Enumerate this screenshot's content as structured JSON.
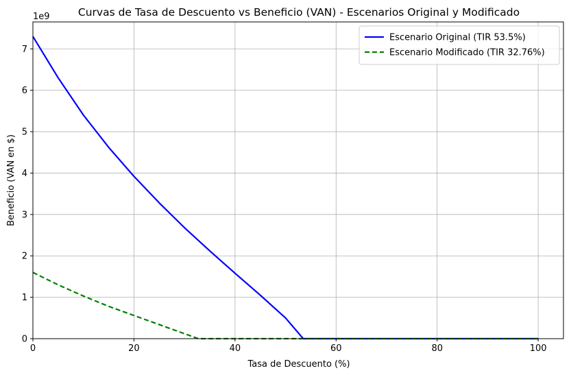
{
  "chart_data": {
    "type": "line",
    "title": "Curvas de Tasa de Descuento vs Beneficio (VAN) - Escenarios Original y Modificado",
    "xlabel": "Tasa de Descuento (%)",
    "ylabel": "Beneficio (VAN en $)",
    "y_offset_label": "1e9",
    "xlim": [
      0,
      105
    ],
    "ylim": [
      0,
      7.65
    ],
    "x_ticks": [
      0,
      20,
      40,
      60,
      80,
      100
    ],
    "y_ticks": [
      0,
      1,
      2,
      3,
      4,
      5,
      6,
      7
    ],
    "grid": true,
    "legend_position": "top-right",
    "series": [
      {
        "name": "Escenario Original (TIR 53.5%)",
        "color": "#0000ff",
        "style": "solid",
        "x": [
          0,
          5,
          10,
          15,
          20,
          25,
          30,
          35,
          40,
          45,
          50,
          53.5,
          60,
          70,
          80,
          90,
          100
        ],
        "y": [
          7.3,
          6.3,
          5.4,
          4.62,
          3.92,
          3.28,
          2.68,
          2.12,
          1.58,
          1.05,
          0.5,
          0,
          0,
          0,
          0,
          0,
          0
        ]
      },
      {
        "name": "Escenario Modificado (TIR 32.76%)",
        "color": "#008000",
        "style": "dashed",
        "x": [
          0,
          5,
          10,
          15,
          20,
          25,
          30,
          32.76,
          40,
          60,
          80,
          100
        ],
        "y": [
          1.6,
          1.3,
          1.03,
          0.78,
          0.56,
          0.34,
          0.12,
          0,
          0,
          0,
          0,
          0
        ]
      }
    ]
  }
}
